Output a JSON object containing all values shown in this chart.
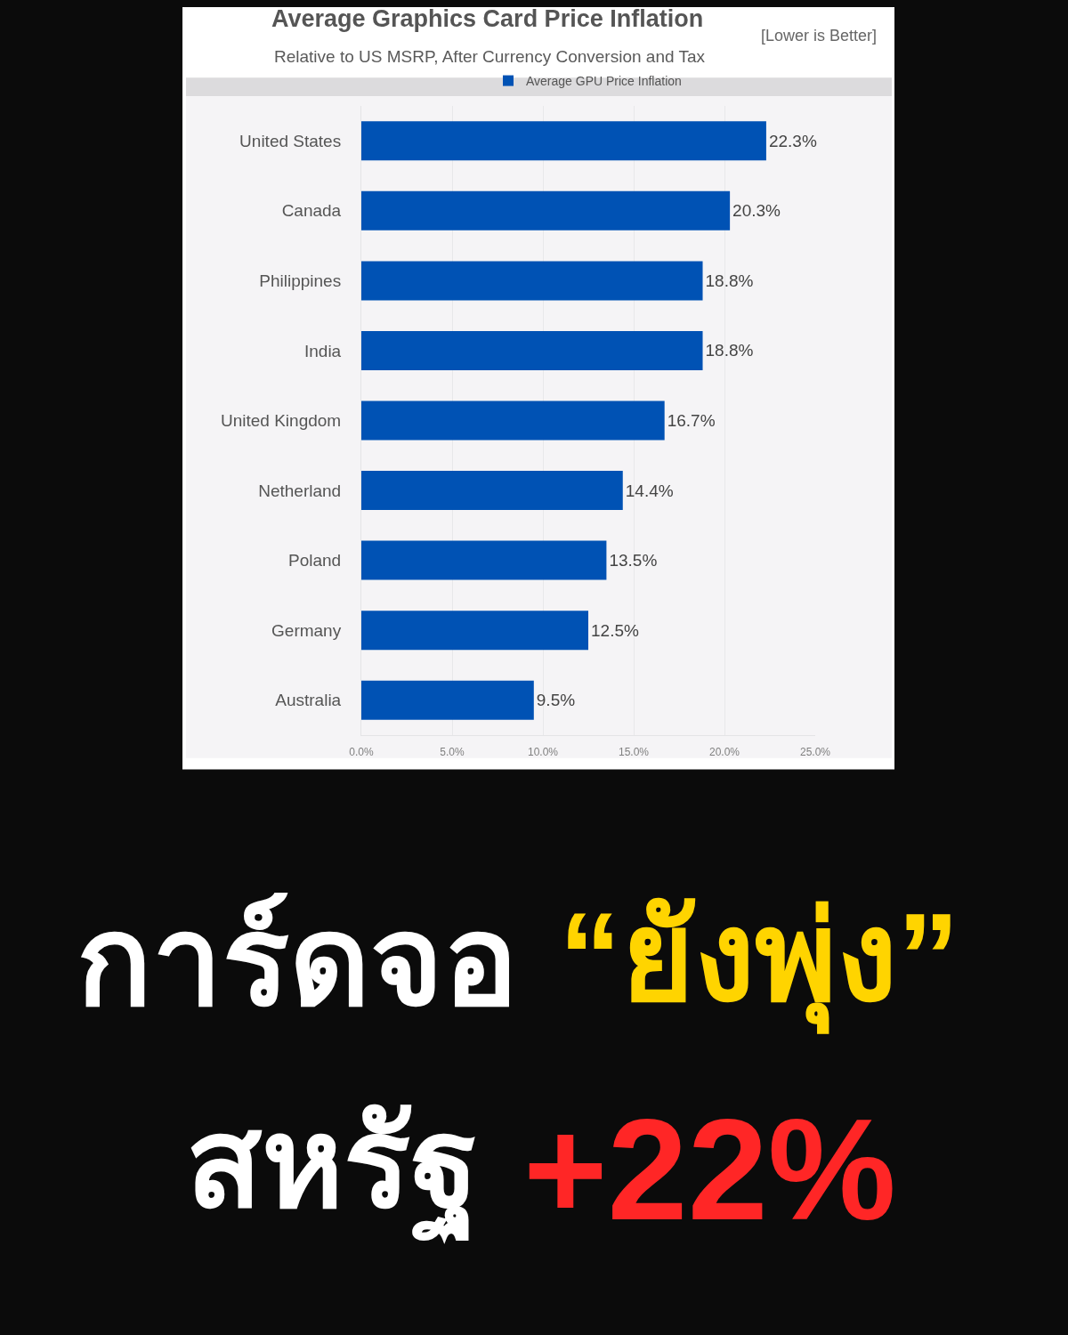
{
  "chart_data": {
    "type": "bar",
    "orientation": "horizontal",
    "title": "Average Graphics Card Price Inflation",
    "subtitle": "Relative to US MSRP, After Currency Conversion and Tax",
    "categories": [
      "United States",
      "Canada",
      "Philippines",
      "India",
      "United Kingdom",
      "Netherland",
      "Poland",
      "Germany",
      "Australia"
    ],
    "series": [
      {
        "name": "Average GPU Price Inflation",
        "color": "#0052b4",
        "values": [
          22.3,
          20.3,
          18.8,
          18.8,
          16.7,
          14.4,
          13.5,
          12.5,
          9.5
        ],
        "value_labels": [
          "22.3%",
          "20.3%",
          "18.8%",
          "18.8%",
          "16.7%",
          "14.4%",
          "13.5%",
          "12.5%",
          "9.5%"
        ]
      }
    ],
    "xlim": [
      0,
      25
    ],
    "xticks": [
      {
        "value": 0,
        "label": "0.0%"
      },
      {
        "value": 5,
        "label": "5.0%"
      },
      {
        "value": 10,
        "label": "10.0%"
      },
      {
        "value": 15,
        "label": "15.0%"
      },
      {
        "value": 20,
        "label": "20.0%"
      },
      {
        "value": 25,
        "label": "25.0%"
      }
    ],
    "grid": "x",
    "legend": "top",
    "annotations": [
      "[Lower is Better]",
      "การ์ดจอ",
      "“ยังพุ่ง”",
      "สหรัฐ",
      "+22%"
    ]
  }
}
